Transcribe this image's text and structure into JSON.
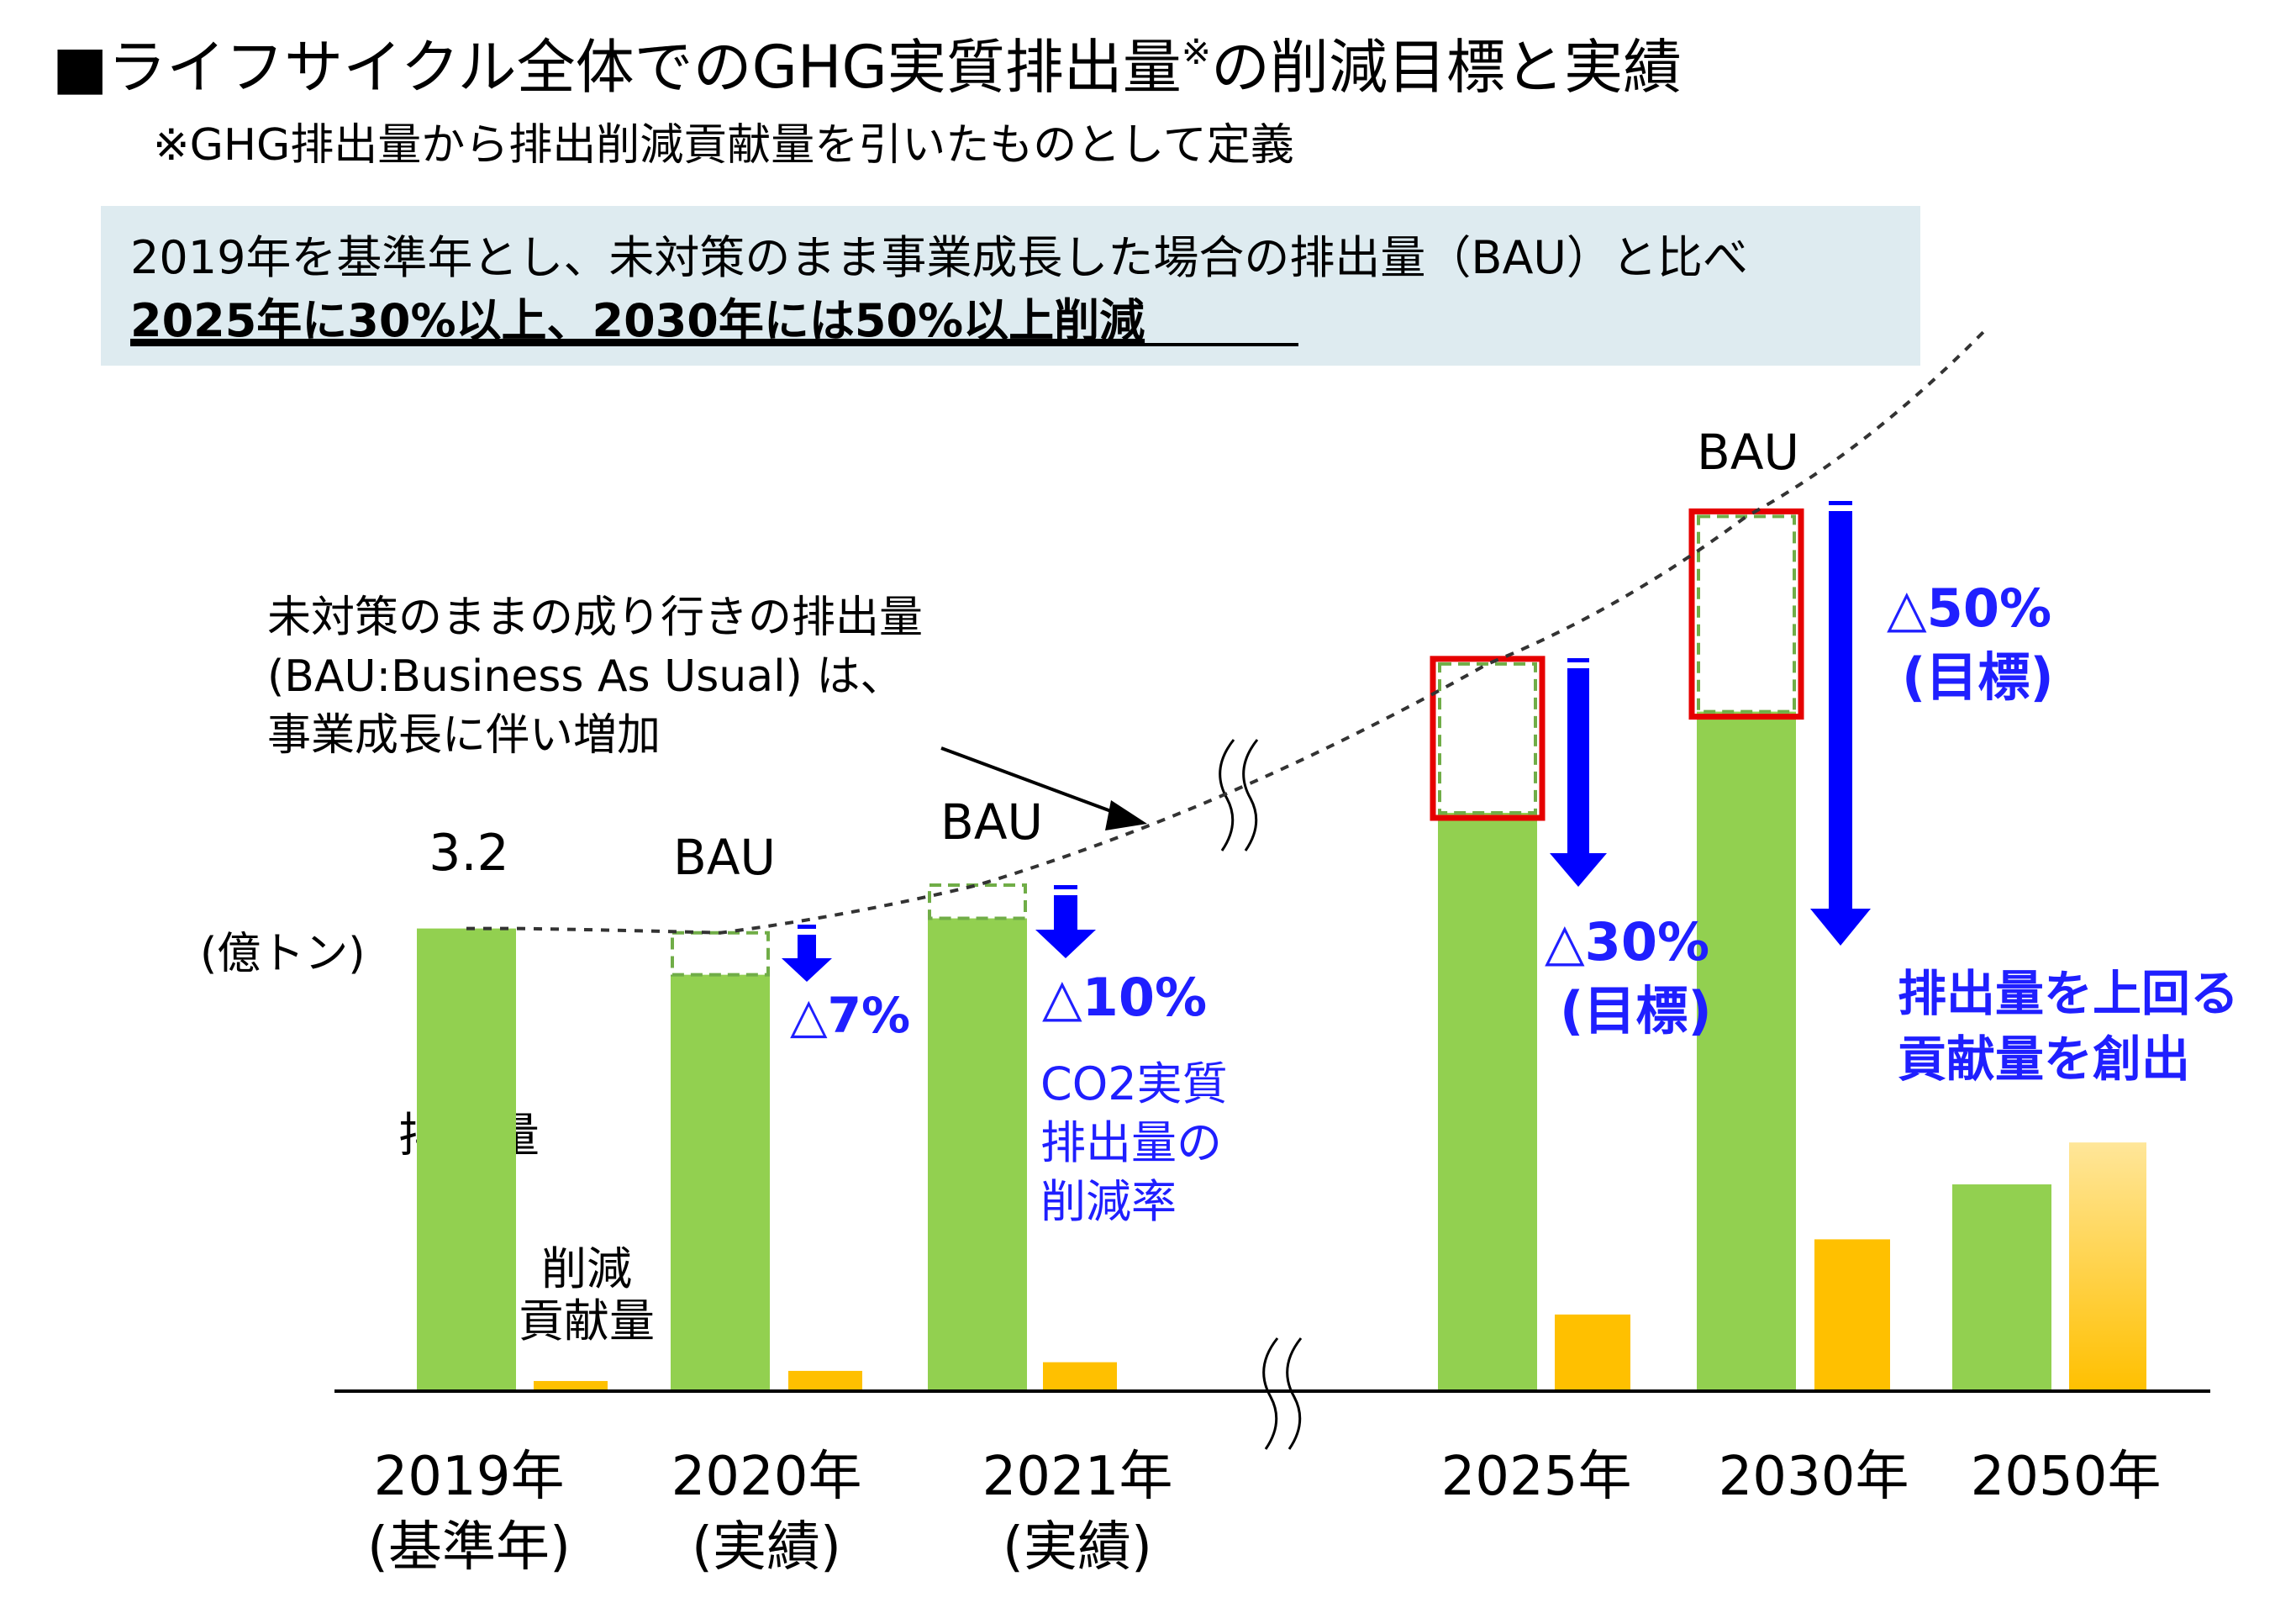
{
  "header": {
    "title": "■ライフサイクル全体でのGHG実質排出量",
    "title_mark": "※",
    "title_tail": "の削減目標と実績",
    "footnote": "※GHG排出量から排出削減貢献量を引いたものとして定義"
  },
  "summary": {
    "line1": "2019年を基準年とし、未対策のまま事業成長した場合の排出量（BAU）と比べ",
    "line2": "2025年に30%以上、2030年には50%以上削減"
  },
  "colors": {
    "emission_bar": "#92D050",
    "contribution_bar": "#FFC000",
    "contribution_bar_2050_top": "#FFE699",
    "bau_box_border": "#70AD47",
    "target_frame": "#E60000",
    "arrow": "#0000FF",
    "blue_text": "#1F1FFF",
    "summary_bg": "#DEEBF0"
  },
  "chart_data": {
    "type": "bar",
    "unit_label": "(億トン)",
    "baseline_value_label": "3.2",
    "categories": [
      {
        "label": "2019年",
        "sub": "(基準年)"
      },
      {
        "label": "2020年",
        "sub": "(実績)"
      },
      {
        "label": "2021年",
        "sub": "(実績)"
      },
      {
        "label": "2025年",
        "sub": ""
      },
      {
        "label": "2030年",
        "sub": ""
      },
      {
        "label": "2050年",
        "sub": ""
      }
    ],
    "series": [
      {
        "name": "排出量",
        "values": [
          3.2,
          2.88,
          3.27,
          4.0,
          4.7,
          1.43
        ]
      },
      {
        "name": "削減貢献量",
        "values": [
          0.07,
          0.14,
          0.2,
          0.53,
          1.05,
          1.72
        ]
      }
    ],
    "bau_values": [
      3.2,
      3.17,
      3.5,
      5.03,
      6.05,
      null
    ],
    "reductions": [
      {
        "year": "2020年",
        "label": "△7%"
      },
      {
        "year": "2021年",
        "label": "△10%"
      },
      {
        "year": "2025年",
        "label": "△30%",
        "note": "(目標)"
      },
      {
        "year": "2030年",
        "label": "△50%",
        "note": "(目標)"
      }
    ],
    "bau_tag": "BAU",
    "ylim": [
      0,
      6.8
    ],
    "grid": false,
    "legend": "none"
  },
  "annotations": {
    "bau_note": [
      "未対策のままの成り行きの排出量",
      "(BAU:Business As Usual) は、",
      "事業成長に伴い増加"
    ],
    "reduction_rate_note": [
      "CO2実質",
      "排出量の",
      "削減率"
    ],
    "emission_label": "排出量",
    "contribution_label": [
      "削減",
      "貢献量"
    ],
    "goal_2050": [
      "排出量を上回る",
      "貢献量を創出"
    ]
  }
}
